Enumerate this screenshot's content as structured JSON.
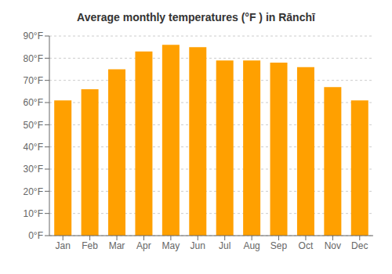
{
  "chart_data": {
    "type": "bar",
    "title": "Average monthly temperatures (°F ) in Rānchī",
    "categories": [
      "Jan",
      "Feb",
      "Mar",
      "Apr",
      "May",
      "Jun",
      "Jul",
      "Aug",
      "Sep",
      "Oct",
      "Nov",
      "Dec"
    ],
    "values": [
      61,
      66,
      75,
      83,
      86,
      85,
      79,
      79,
      78,
      76,
      67,
      61
    ],
    "color": "#FFA000",
    "ylim": [
      0,
      90
    ],
    "yticks": [
      {
        "value": 0,
        "label": "0°F"
      },
      {
        "value": 10,
        "label": "10°F"
      },
      {
        "value": 20,
        "label": "20°F"
      },
      {
        "value": 30,
        "label": "30°F"
      },
      {
        "value": 40,
        "label": "40°F"
      },
      {
        "value": 50,
        "label": "50°F"
      },
      {
        "value": 60,
        "label": "60°F"
      },
      {
        "value": 70,
        "label": "70°F"
      },
      {
        "value": 80,
        "label": "80°F"
      },
      {
        "value": 90,
        "label": "90°F"
      }
    ],
    "grid": true
  }
}
